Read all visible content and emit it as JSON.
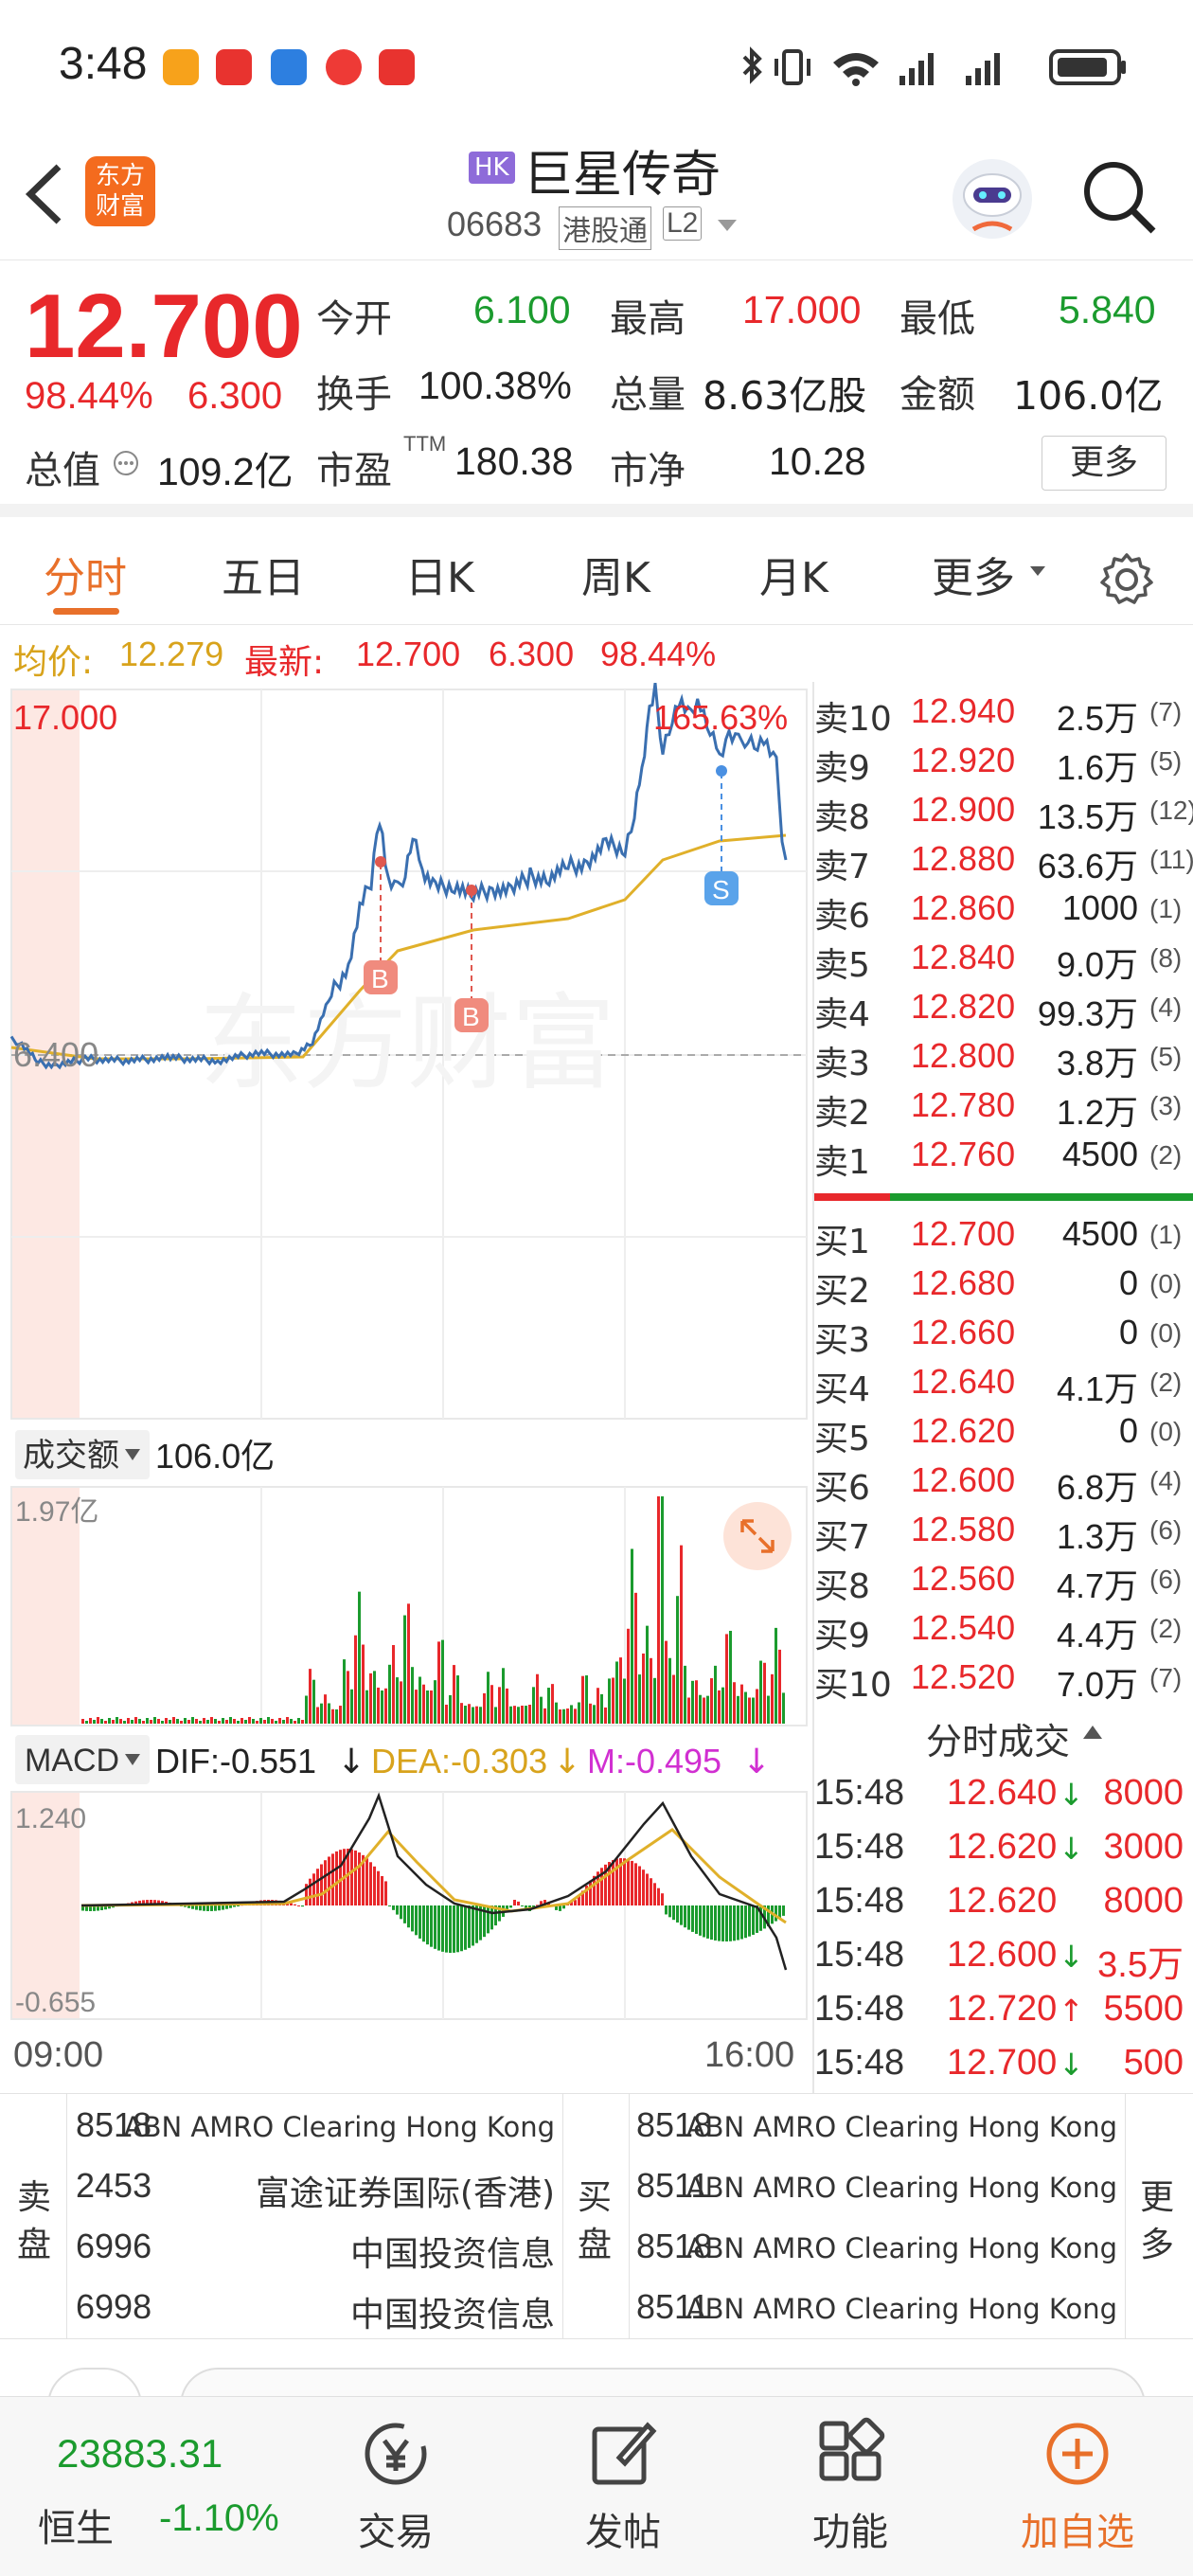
{
  "status_bar": {
    "time": "3:48"
  },
  "header": {
    "logo_text": "东方\n财富",
    "market_badge": "HK",
    "title": "巨星传奇",
    "code": "06683",
    "connect_label": "港股通",
    "level_badge": "L2"
  },
  "quote": {
    "price": "12.700",
    "change_pct": "98.44%",
    "change": "6.300",
    "open_label": "今开",
    "open": "6.100",
    "high_label": "最高",
    "high": "17.000",
    "low_label": "最低",
    "low": "5.840",
    "turnover_label": "换手",
    "turnover": "100.38%",
    "volume_label": "总量",
    "volume": "8.63亿股",
    "amount_label": "金额",
    "amount": "106.0亿",
    "mktcap_label": "总值",
    "mktcap": "109.2亿",
    "pe_label": "市盈",
    "pe_sup": "TTM",
    "pe": "180.38",
    "pb_label": "市净",
    "pb": "10.28",
    "more_button": "更多"
  },
  "tabs": [
    {
      "label": "分时",
      "active": true
    },
    {
      "label": "五日"
    },
    {
      "label": "日K"
    },
    {
      "label": "周K"
    },
    {
      "label": "月K"
    },
    {
      "label": "更多"
    }
  ],
  "info_line": {
    "avg_label": "均价:",
    "avg": "12.279",
    "latest_label": "最新:",
    "latest": "12.700",
    "change": "6.300",
    "pct": "98.44%"
  },
  "chart": {
    "high_label": "17.000",
    "high_pct": "165.63%",
    "base_label": "6.400",
    "watermark": "东方财富",
    "buy_marker": "B",
    "sell_marker": "S",
    "volume_selector": "成交额",
    "volume_total": "106.0亿",
    "volume_max": "1.97亿",
    "macd_selector": "MACD",
    "dif": "DIF:-0.551",
    "dea": "DEA:-0.303",
    "m": "M:-0.495",
    "macd_max": "1.240",
    "macd_min": "-0.655",
    "time_start": "09:00",
    "time_end": "16:00"
  },
  "order_book": {
    "asks": [
      {
        "label": "卖10",
        "price": "12.940",
        "vol": "2.5万",
        "n": "(7)"
      },
      {
        "label": "卖9",
        "price": "12.920",
        "vol": "1.6万",
        "n": "(5)"
      },
      {
        "label": "卖8",
        "price": "12.900",
        "vol": "13.5万",
        "n": "(12)"
      },
      {
        "label": "卖7",
        "price": "12.880",
        "vol": "63.6万",
        "n": "(11)"
      },
      {
        "label": "卖6",
        "price": "12.860",
        "vol": "1000",
        "n": "(1)"
      },
      {
        "label": "卖5",
        "price": "12.840",
        "vol": "9.0万",
        "n": "(8)"
      },
      {
        "label": "卖4",
        "price": "12.820",
        "vol": "99.3万",
        "n": "(4)"
      },
      {
        "label": "卖3",
        "price": "12.800",
        "vol": "3.8万",
        "n": "(5)"
      },
      {
        "label": "卖2",
        "price": "12.780",
        "vol": "1.2万",
        "n": "(3)"
      },
      {
        "label": "卖1",
        "price": "12.760",
        "vol": "4500",
        "n": "(2)"
      }
    ],
    "bids": [
      {
        "label": "买1",
        "price": "12.700",
        "vol": "4500",
        "n": "(1)"
      },
      {
        "label": "买2",
        "price": "12.680",
        "vol": "0",
        "n": "(0)"
      },
      {
        "label": "买3",
        "price": "12.660",
        "vol": "0",
        "n": "(0)"
      },
      {
        "label": "买4",
        "price": "12.640",
        "vol": "4.1万",
        "n": "(2)"
      },
      {
        "label": "买5",
        "price": "12.620",
        "vol": "0",
        "n": "(0)"
      },
      {
        "label": "买6",
        "price": "12.600",
        "vol": "6.8万",
        "n": "(4)"
      },
      {
        "label": "买7",
        "price": "12.580",
        "vol": "1.3万",
        "n": "(6)"
      },
      {
        "label": "买8",
        "price": "12.560",
        "vol": "4.7万",
        "n": "(6)"
      },
      {
        "label": "买9",
        "price": "12.540",
        "vol": "4.4万",
        "n": "(2)"
      },
      {
        "label": "买10",
        "price": "12.520",
        "vol": "7.0万",
        "n": "(7)"
      }
    ]
  },
  "trades": {
    "title": "分时成交",
    "rows": [
      {
        "time": "15:48",
        "price": "12.640",
        "arrow": "↓",
        "vol": "8000",
        "vol_color": "red"
      },
      {
        "time": "15:48",
        "price": "12.620",
        "arrow": "↓",
        "vol": "3000",
        "vol_color": "red"
      },
      {
        "time": "15:48",
        "price": "12.620",
        "arrow": "",
        "vol": "8000",
        "vol_color": "red"
      },
      {
        "time": "15:48",
        "price": "12.600",
        "arrow": "↓",
        "vol": "3.5万",
        "vol_color": "red"
      },
      {
        "time": "15:48",
        "price": "12.720",
        "arrow": "↑",
        "vol": "5500",
        "vol_color": "red"
      },
      {
        "time": "15:48",
        "price": "12.700",
        "arrow": "↓",
        "vol": "500",
        "vol_color": "red"
      }
    ]
  },
  "brokers": {
    "sell_label_1": "卖",
    "sell_label_2": "盘",
    "buy_label_1": "买",
    "buy_label_2": "盘",
    "more_label_1": "更",
    "more_label_2": "多",
    "sell": [
      {
        "id": "8518",
        "name": "ABN AMRO Clearing Hong Kong"
      },
      {
        "id": "2453",
        "name": "富途证券国际(香港)"
      },
      {
        "id": "6996",
        "name": "中国投资信息"
      },
      {
        "id": "6998",
        "name": "中国投资信息"
      }
    ],
    "buy": [
      {
        "id": "8518",
        "name": "ABN AMRO Clearing Hong Kong"
      },
      {
        "id": "8511",
        "name": "ABN AMRO Clearing Hong Kong"
      },
      {
        "id": "8518",
        "name": "ABN AMRO Clearing Hong Kong"
      },
      {
        "id": "8511",
        "name": "ABN AMRO Clearing Hong Kong"
      }
    ]
  },
  "bottom_nav": {
    "index_value": "23883.31",
    "index_name": "恒生",
    "index_change": "-1.10%",
    "items": [
      {
        "label": "交易",
        "icon": "yen-icon"
      },
      {
        "label": "发帖",
        "icon": "edit-icon"
      },
      {
        "label": "功能",
        "icon": "grid-icon"
      },
      {
        "label": "加自选",
        "icon": "plus-circle-icon"
      }
    ]
  }
}
